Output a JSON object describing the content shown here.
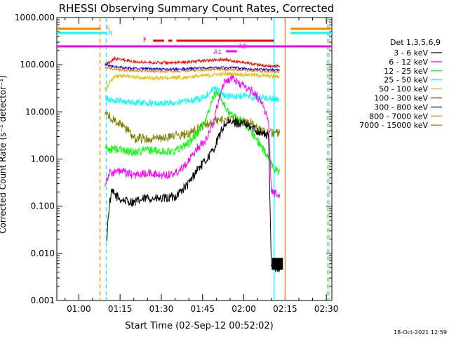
{
  "chart_data": {
    "type": "line",
    "title": "RHESSI Observing Summary Count Rates, Corrected",
    "xlabel": "Start Time (02-Sep-12 00:52:02)",
    "ylabel": "Corrected Count Rate (s⁻¹ detector⁻¹)",
    "yscale": "log",
    "ylim": [
      0.001,
      1000
    ],
    "xlim_minutes": [
      52,
      152
    ],
    "x_ticks": [
      {
        "label": "01:00",
        "t": 60
      },
      {
        "label": "01:15",
        "t": 75
      },
      {
        "label": "01:30",
        "t": 90
      },
      {
        "label": "01:45",
        "t": 105
      },
      {
        "label": "02:00",
        "t": 120
      },
      {
        "label": "02:15",
        "t": 135
      },
      {
        "label": "02:30",
        "t": 150
      }
    ],
    "y_ticks": [
      {
        "label": "1000.000",
        "v": 1000
      },
      {
        "label": "100.000",
        "v": 100
      },
      {
        "label": "10.000",
        "v": 10
      },
      {
        "label": "1.000",
        "v": 1
      },
      {
        "label": "0.100",
        "v": 0.1
      },
      {
        "label": "0.010",
        "v": 0.01
      },
      {
        "label": "0.001",
        "v": 0.001
      }
    ],
    "legend_title": "Det 1,3,5,6,9",
    "legend_position": "right",
    "series": [
      {
        "name": "3 - 6 keV",
        "color": "#000000",
        "points": [
          [
            70,
            0.016
          ],
          [
            71,
            0.1
          ],
          [
            72,
            0.2
          ],
          [
            75,
            0.14
          ],
          [
            80,
            0.12
          ],
          [
            85,
            0.15
          ],
          [
            90,
            0.14
          ],
          [
            95,
            0.16
          ],
          [
            100,
            0.3
          ],
          [
            103,
            0.6
          ],
          [
            106,
            0.9
          ],
          [
            109,
            1.6
          ],
          [
            111,
            3
          ],
          [
            113,
            5.5
          ],
          [
            117,
            6
          ],
          [
            120,
            5.5
          ],
          [
            123,
            4.5
          ],
          [
            127,
            3.5
          ],
          [
            129,
            3
          ],
          [
            130,
            0.005
          ],
          [
            134,
            0.005
          ]
        ]
      },
      {
        "name": "6 - 12 keV",
        "color": "#ff00ff",
        "points": [
          [
            69.5,
            0.3
          ],
          [
            71,
            0.5
          ],
          [
            75,
            0.55
          ],
          [
            80,
            0.45
          ],
          [
            85,
            0.5
          ],
          [
            90,
            0.45
          ],
          [
            95,
            0.5
          ],
          [
            100,
            0.9
          ],
          [
            103,
            1.7
          ],
          [
            106,
            2.5
          ],
          [
            109,
            6
          ],
          [
            111,
            20
          ],
          [
            113,
            45
          ],
          [
            116,
            50
          ],
          [
            120,
            35
          ],
          [
            124,
            25
          ],
          [
            127,
            14
          ],
          [
            129,
            6
          ],
          [
            130,
            0.2
          ],
          [
            133,
            0.18
          ]
        ]
      },
      {
        "name": "12 - 25 keV",
        "color": "#00ff00",
        "points": [
          [
            69.5,
            1.8
          ],
          [
            71,
            1.6
          ],
          [
            75,
            1.6
          ],
          [
            80,
            1.4
          ],
          [
            85,
            1.6
          ],
          [
            90,
            1.4
          ],
          [
            95,
            1.5
          ],
          [
            100,
            2.2
          ],
          [
            104,
            4
          ],
          [
            107,
            9
          ],
          [
            109,
            22
          ],
          [
            111,
            25
          ],
          [
            113,
            13
          ],
          [
            116,
            8
          ],
          [
            120,
            6
          ],
          [
            124,
            3
          ],
          [
            127,
            1.6
          ],
          [
            129,
            1.1
          ],
          [
            131,
            0.6
          ],
          [
            133,
            0.55
          ]
        ]
      },
      {
        "name": "25 - 50 keV",
        "color": "#00ffff",
        "points": [
          [
            69.5,
            20
          ],
          [
            71,
            18
          ],
          [
            75,
            17
          ],
          [
            80,
            16
          ],
          [
            85,
            15.5
          ],
          [
            90,
            15
          ],
          [
            95,
            15.5
          ],
          [
            100,
            17
          ],
          [
            104,
            19
          ],
          [
            107,
            24
          ],
          [
            109,
            32
          ],
          [
            111,
            28
          ],
          [
            113,
            22
          ],
          [
            116,
            21
          ],
          [
            120,
            22
          ],
          [
            125,
            20
          ],
          [
            130,
            19
          ],
          [
            133,
            19
          ]
        ]
      },
      {
        "name": "50 - 100 keV",
        "color": "#e0c000",
        "points": [
          [
            69.5,
            30
          ],
          [
            71,
            40
          ],
          [
            73,
            55
          ],
          [
            75,
            58
          ],
          [
            80,
            55
          ],
          [
            85,
            52
          ],
          [
            90,
            52
          ],
          [
            95,
            53
          ],
          [
            100,
            55
          ],
          [
            105,
            58
          ],
          [
            110,
            62
          ],
          [
            115,
            64
          ],
          [
            120,
            62
          ],
          [
            125,
            60
          ],
          [
            130,
            57
          ],
          [
            133,
            55
          ]
        ]
      },
      {
        "name": "100 - 300 keV",
        "color": "#ff0000",
        "points": [
          [
            69.5,
            105
          ],
          [
            71,
            110
          ],
          [
            73,
            135
          ],
          [
            75,
            130
          ],
          [
            80,
            118
          ],
          [
            85,
            112
          ],
          [
            90,
            110
          ],
          [
            95,
            110
          ],
          [
            100,
            115
          ],
          [
            105,
            122
          ],
          [
            110,
            125
          ],
          [
            113,
            130
          ],
          [
            116,
            120
          ],
          [
            120,
            112
          ],
          [
            125,
            100
          ],
          [
            130,
            92
          ],
          [
            133,
            95
          ]
        ]
      },
      {
        "name": "300 - 800 keV",
        "color": "#0000ff",
        "points": [
          [
            69.5,
            100
          ],
          [
            71,
            95
          ],
          [
            75,
            88
          ],
          [
            80,
            84
          ],
          [
            85,
            82
          ],
          [
            90,
            80
          ],
          [
            95,
            80
          ],
          [
            100,
            82
          ],
          [
            105,
            86
          ],
          [
            110,
            88
          ],
          [
            115,
            86
          ],
          [
            120,
            83
          ],
          [
            125,
            80
          ],
          [
            130,
            78
          ],
          [
            133,
            78
          ]
        ]
      },
      {
        "name": "800 - 7000 keV",
        "color": "#ff8000",
        "points": [
          [
            69.5,
            88
          ],
          [
            71,
            85
          ],
          [
            75,
            78
          ],
          [
            80,
            75
          ],
          [
            85,
            73
          ],
          [
            90,
            72
          ],
          [
            95,
            72
          ],
          [
            100,
            75
          ],
          [
            105,
            78
          ],
          [
            110,
            80
          ],
          [
            115,
            79
          ],
          [
            120,
            77
          ],
          [
            125,
            74
          ],
          [
            130,
            70
          ],
          [
            133,
            70
          ]
        ]
      },
      {
        "name": "7000 - 15000 keV",
        "color": "#808000",
        "points": [
          [
            69.5,
            9
          ],
          [
            71,
            8
          ],
          [
            75,
            5.5
          ],
          [
            78,
            4
          ],
          [
            80,
            2.8
          ],
          [
            85,
            2.7
          ],
          [
            90,
            2.7
          ],
          [
            95,
            3
          ],
          [
            100,
            3.5
          ],
          [
            105,
            5
          ],
          [
            110,
            6.5
          ],
          [
            115,
            7
          ],
          [
            120,
            6.5
          ],
          [
            124,
            5.5
          ],
          [
            126,
            4
          ],
          [
            128,
            3.5
          ],
          [
            133,
            3.5
          ]
        ]
      }
    ],
    "flag_bars": [
      {
        "label": "S",
        "color": "#ff8000",
        "ranges": [
          [
            52,
            68
          ],
          [
            137,
            152
          ]
        ]
      },
      {
        "label": "N",
        "color": "#00ffff",
        "ranges": [
          [
            52,
            70
          ],
          [
            137,
            152
          ]
        ]
      },
      {
        "label": "F",
        "color": "#ff0000",
        "ranges": [
          [
            87,
            91
          ],
          [
            92.5,
            94
          ],
          [
            95.5,
            131
          ]
        ]
      },
      {
        "label": "",
        "color": "#ff00ff",
        "ranges": [
          [
            52,
            152
          ]
        ]
      },
      {
        "label": "A0",
        "color": "#ff00ff",
        "ranges": []
      },
      {
        "label": "A1",
        "color": "#ff00ff",
        "ranges": [
          [
            113.5,
            117.5
          ]
        ]
      }
    ],
    "vertical_markers": [
      {
        "t": 67.7,
        "color": "#ff8000",
        "style": "dashed"
      },
      {
        "t": 70.0,
        "color": "#00ffff",
        "style": "dashed"
      },
      {
        "t": 131.0,
        "color": "#00ffff",
        "style": "solid"
      },
      {
        "t": 135.0,
        "color": "#ff8000",
        "style": "solid"
      },
      {
        "t": 151.0,
        "color": "#00ffff",
        "style": "dashed"
      },
      {
        "t": 150.5,
        "color": "#ff8000",
        "style": "dashed"
      }
    ]
  },
  "footer": {
    "timestamp": "18-Oct-2021 12:59"
  }
}
